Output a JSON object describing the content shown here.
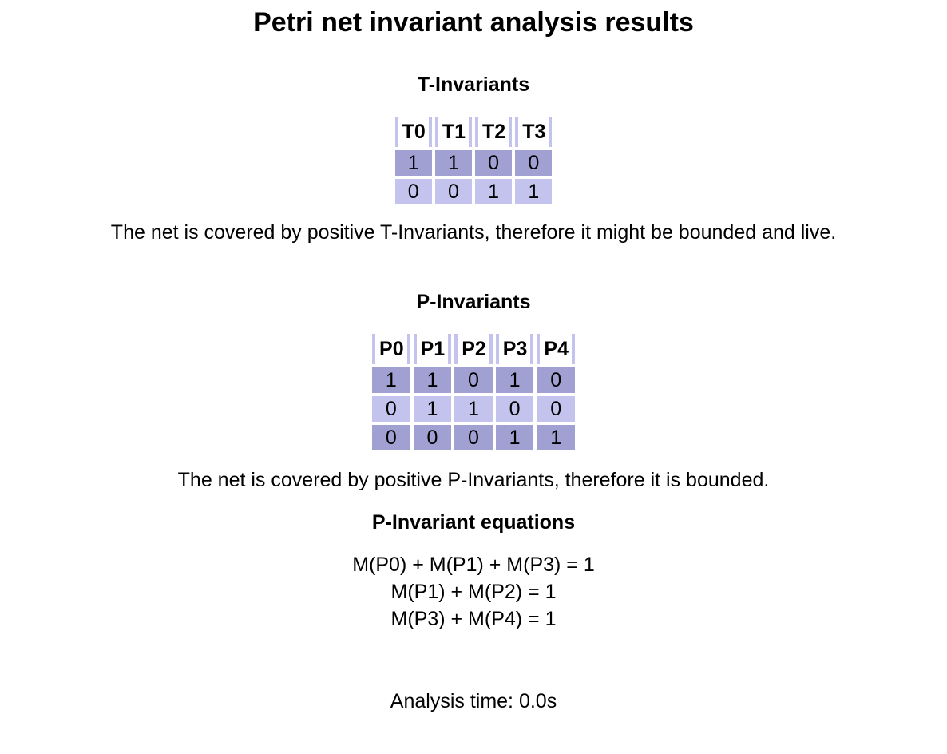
{
  "page_title": "Petri net invariant analysis results",
  "t_invariants": {
    "heading": "T-Invariants",
    "columns": [
      "T0",
      "T1",
      "T2",
      "T3"
    ],
    "rows": [
      [
        "1",
        "1",
        "0",
        "0"
      ],
      [
        "0",
        "0",
        "1",
        "1"
      ]
    ],
    "conclusion": "The net is covered by positive T-Invariants, therefore it might be bounded and live."
  },
  "p_invariants": {
    "heading": "P-Invariants",
    "columns": [
      "P0",
      "P1",
      "P2",
      "P3",
      "P4"
    ],
    "rows": [
      [
        "1",
        "1",
        "0",
        "1",
        "0"
      ],
      [
        "0",
        "1",
        "1",
        "0",
        "0"
      ],
      [
        "0",
        "0",
        "0",
        "1",
        "1"
      ]
    ],
    "conclusion": "The net is covered by positive P-Invariants, therefore it is bounded."
  },
  "equations": {
    "heading": "P-Invariant equations",
    "lines": [
      "M(P0) + M(P1) + M(P3) = 1",
      "M(P1) + M(P2) = 1",
      "M(P3) + M(P4) = 1"
    ]
  },
  "analysis_time": "Analysis time: 0.0s",
  "colors": {
    "row_dark": "#a0a0d2",
    "row_light": "#c3c3ee",
    "header_divider": "#c3c3ee"
  }
}
